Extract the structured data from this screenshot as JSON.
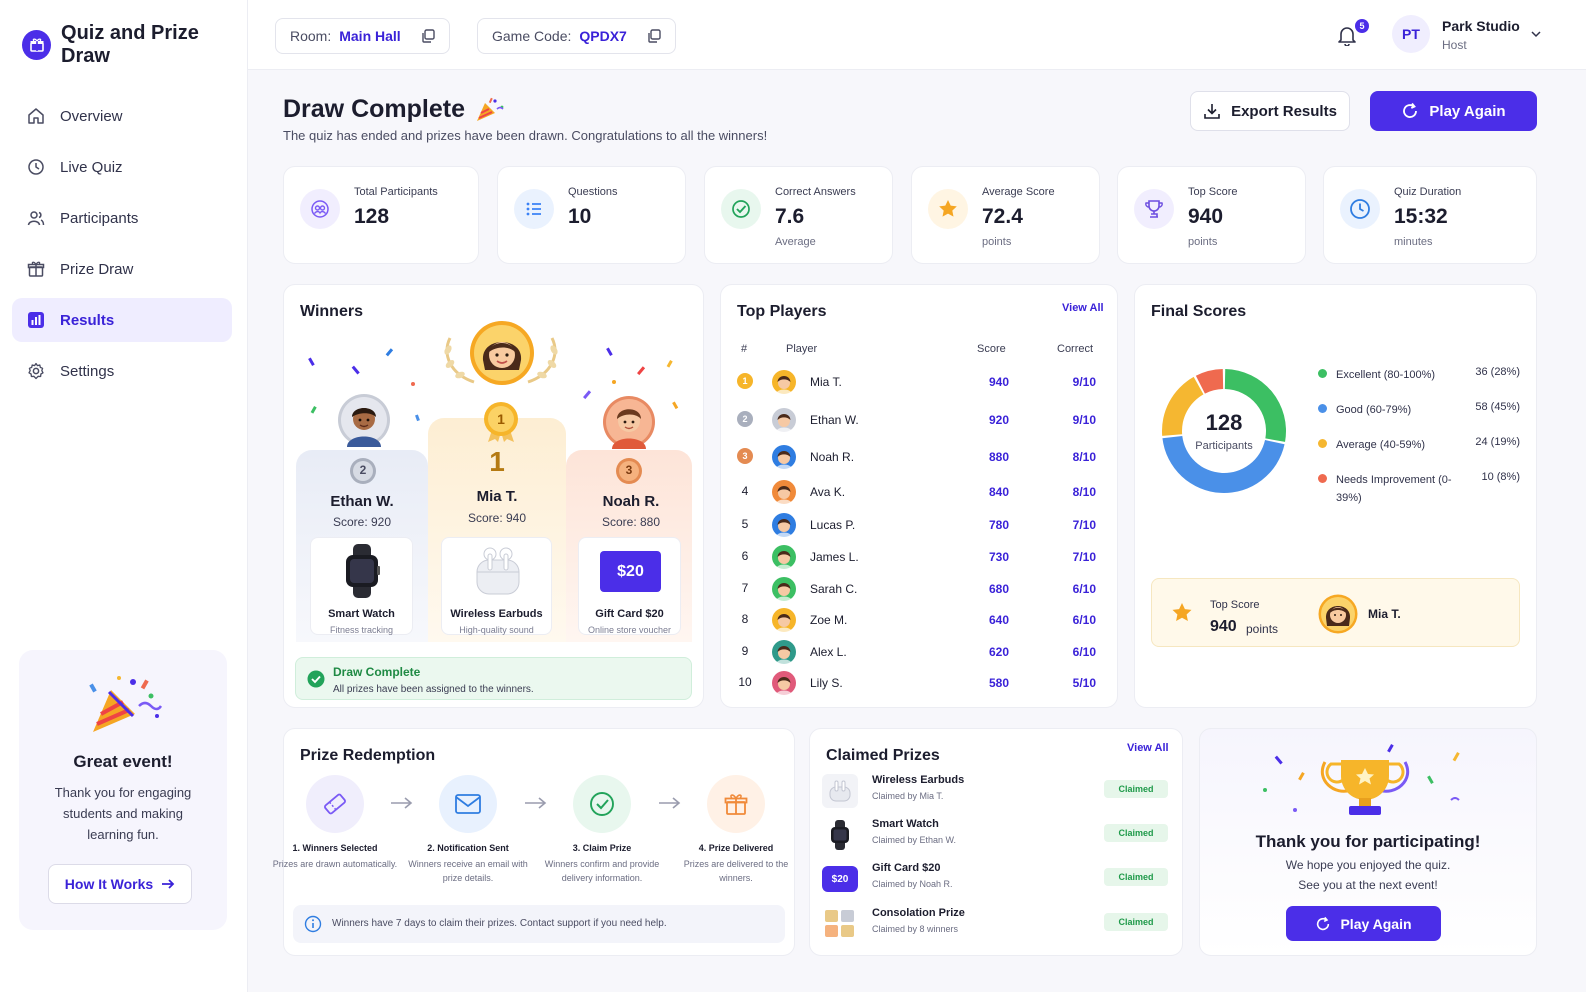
{
  "app": {
    "title": "Quiz and Prize Draw"
  },
  "nav": {
    "items": [
      {
        "label": "Overview",
        "icon": "home-icon"
      },
      {
        "label": "Live Quiz",
        "icon": "clock-icon"
      },
      {
        "label": "Participants",
        "icon": "users-icon"
      },
      {
        "label": "Prize Draw",
        "icon": "gift-icon"
      },
      {
        "label": "Results",
        "icon": "chart-icon",
        "active": true
      },
      {
        "label": "Settings",
        "icon": "gear-icon"
      }
    ]
  },
  "promo": {
    "title": "Great event!",
    "text": "Thank you for engaging students and making learning fun.",
    "button": "How It Works"
  },
  "topbar": {
    "room_label": "Room:",
    "room_value": "Main Hall",
    "code_label": "Game Code:",
    "code_value": "QPDX7",
    "notifications": "5",
    "user_initials": "PT",
    "user_name": "Park Studio",
    "user_role": "Host"
  },
  "header": {
    "title": "Draw Complete",
    "subtitle": "The quiz has ended and prizes have been drawn. Congratulations to all the winners!",
    "export_label": "Export Results",
    "play_again_label": "Play Again"
  },
  "stats": [
    {
      "label": "Total Participants",
      "value": "128",
      "sub": "",
      "icon": "participants-icon",
      "color": "#7a5af5"
    },
    {
      "label": "Questions",
      "value": "10",
      "sub": "",
      "icon": "list-icon",
      "color": "#3b82f6"
    },
    {
      "label": "Correct Answers",
      "value": "7.6",
      "sub": "Average",
      "icon": "check-circle-icon",
      "color": "#22a35a"
    },
    {
      "label": "Average Score",
      "value": "72.4",
      "sub": "points",
      "icon": "star-icon",
      "color": "#f5a623"
    },
    {
      "label": "Top Score",
      "value": "940",
      "sub": "points",
      "icon": "trophy-icon",
      "color": "#6d4fe0"
    },
    {
      "label": "Quiz Duration",
      "value": "15:32",
      "sub": "minutes",
      "icon": "clock-icon",
      "color": "#2f7de1"
    }
  ],
  "winners": {
    "title": "Winners",
    "first": {
      "rank": "1",
      "name": "Mia T.",
      "score": "Score: 940",
      "prize": "Wireless Earbuds",
      "prize_desc": "High-quality sound"
    },
    "second": {
      "rank": "2",
      "name": "Ethan W.",
      "score": "Score: 920",
      "prize": "Smart Watch",
      "prize_desc": "Fitness tracking"
    },
    "third": {
      "rank": "3",
      "name": "Noah R.",
      "score": "Score: 880",
      "prize": "Gift Card $20",
      "prize_desc": "Online store voucher",
      "card_value": "$20"
    },
    "status_title": "Draw Complete",
    "status_text": "All prizes have been assigned to the winners."
  },
  "top_players": {
    "title": "Top Players",
    "view_all": "View All",
    "headers": {
      "rank": "#",
      "player": "Player",
      "score": "Score",
      "correct": "Correct"
    },
    "rows": [
      {
        "rank": "1",
        "name": "Mia T.",
        "score": "940",
        "correct": "9/10"
      },
      {
        "rank": "2",
        "name": "Ethan W.",
        "score": "920",
        "correct": "9/10"
      },
      {
        "rank": "3",
        "name": "Noah R.",
        "score": "880",
        "correct": "8/10"
      },
      {
        "rank": "4",
        "name": "Ava K.",
        "score": "840",
        "correct": "8/10"
      },
      {
        "rank": "5",
        "name": "Lucas P.",
        "score": "780",
        "correct": "7/10"
      },
      {
        "rank": "6",
        "name": "James L.",
        "score": "730",
        "correct": "7/10"
      },
      {
        "rank": "7",
        "name": "Sarah C.",
        "score": "680",
        "correct": "6/10"
      },
      {
        "rank": "8",
        "name": "Zoe M.",
        "score": "640",
        "correct": "6/10"
      },
      {
        "rank": "9",
        "name": "Alex L.",
        "score": "620",
        "correct": "6/10"
      },
      {
        "rank": "10",
        "name": "Lily S.",
        "score": "580",
        "correct": "5/10"
      }
    ]
  },
  "final_scores": {
    "title": "Final Scores",
    "center_value": "128",
    "center_label": "Participants",
    "legend": [
      {
        "label": "Excellent (80-100%)",
        "value": "36 (28%)",
        "count": 36,
        "color": "#3cbf63"
      },
      {
        "label": "Good (60-79%)",
        "value": "58 (45%)",
        "count": 58,
        "color": "#4a90e8"
      },
      {
        "label": "Average (40-59%)",
        "value": "24 (19%)",
        "count": 24,
        "color": "#f5b731"
      },
      {
        "label": "Needs Improvement (0-39%)",
        "value": "10 (8%)",
        "count": 10,
        "color": "#ef6a4f"
      }
    ],
    "top_score_label": "Top Score",
    "top_score_value": "940",
    "top_score_unit": "points",
    "top_score_name": "Mia T."
  },
  "redemption": {
    "title": "Prize Redemption",
    "steps": [
      {
        "title": "1. Winners Selected",
        "desc": "Prizes are drawn automatically."
      },
      {
        "title": "2. Notification Sent",
        "desc": "Winners receive an email with prize details."
      },
      {
        "title": "3. Claim Prize",
        "desc": "Winners confirm and provide delivery information."
      },
      {
        "title": "4. Prize Delivered",
        "desc": "Prizes are delivered to the winners."
      }
    ],
    "note": "Winners have 7 days to claim their prizes. Contact support if you need help."
  },
  "claimed": {
    "title": "Claimed Prizes",
    "view_all": "View All",
    "items": [
      {
        "name": "Wireless Earbuds",
        "by": "Claimed by Mia T.",
        "status": "Claimed"
      },
      {
        "name": "Smart Watch",
        "by": "Claimed by Ethan W.",
        "status": "Claimed"
      },
      {
        "name": "Gift Card $20",
        "by": "Claimed by Noah R.",
        "status": "Claimed",
        "thumb_text": "$20"
      },
      {
        "name": "Consolation Prize",
        "by": "Claimed by 8 winners",
        "status": "Claimed"
      }
    ]
  },
  "thanks": {
    "title": "Thank you for participating!",
    "line1": "We hope you enjoyed the quiz.",
    "line2": "See you at the next event!",
    "button": "Play Again"
  }
}
